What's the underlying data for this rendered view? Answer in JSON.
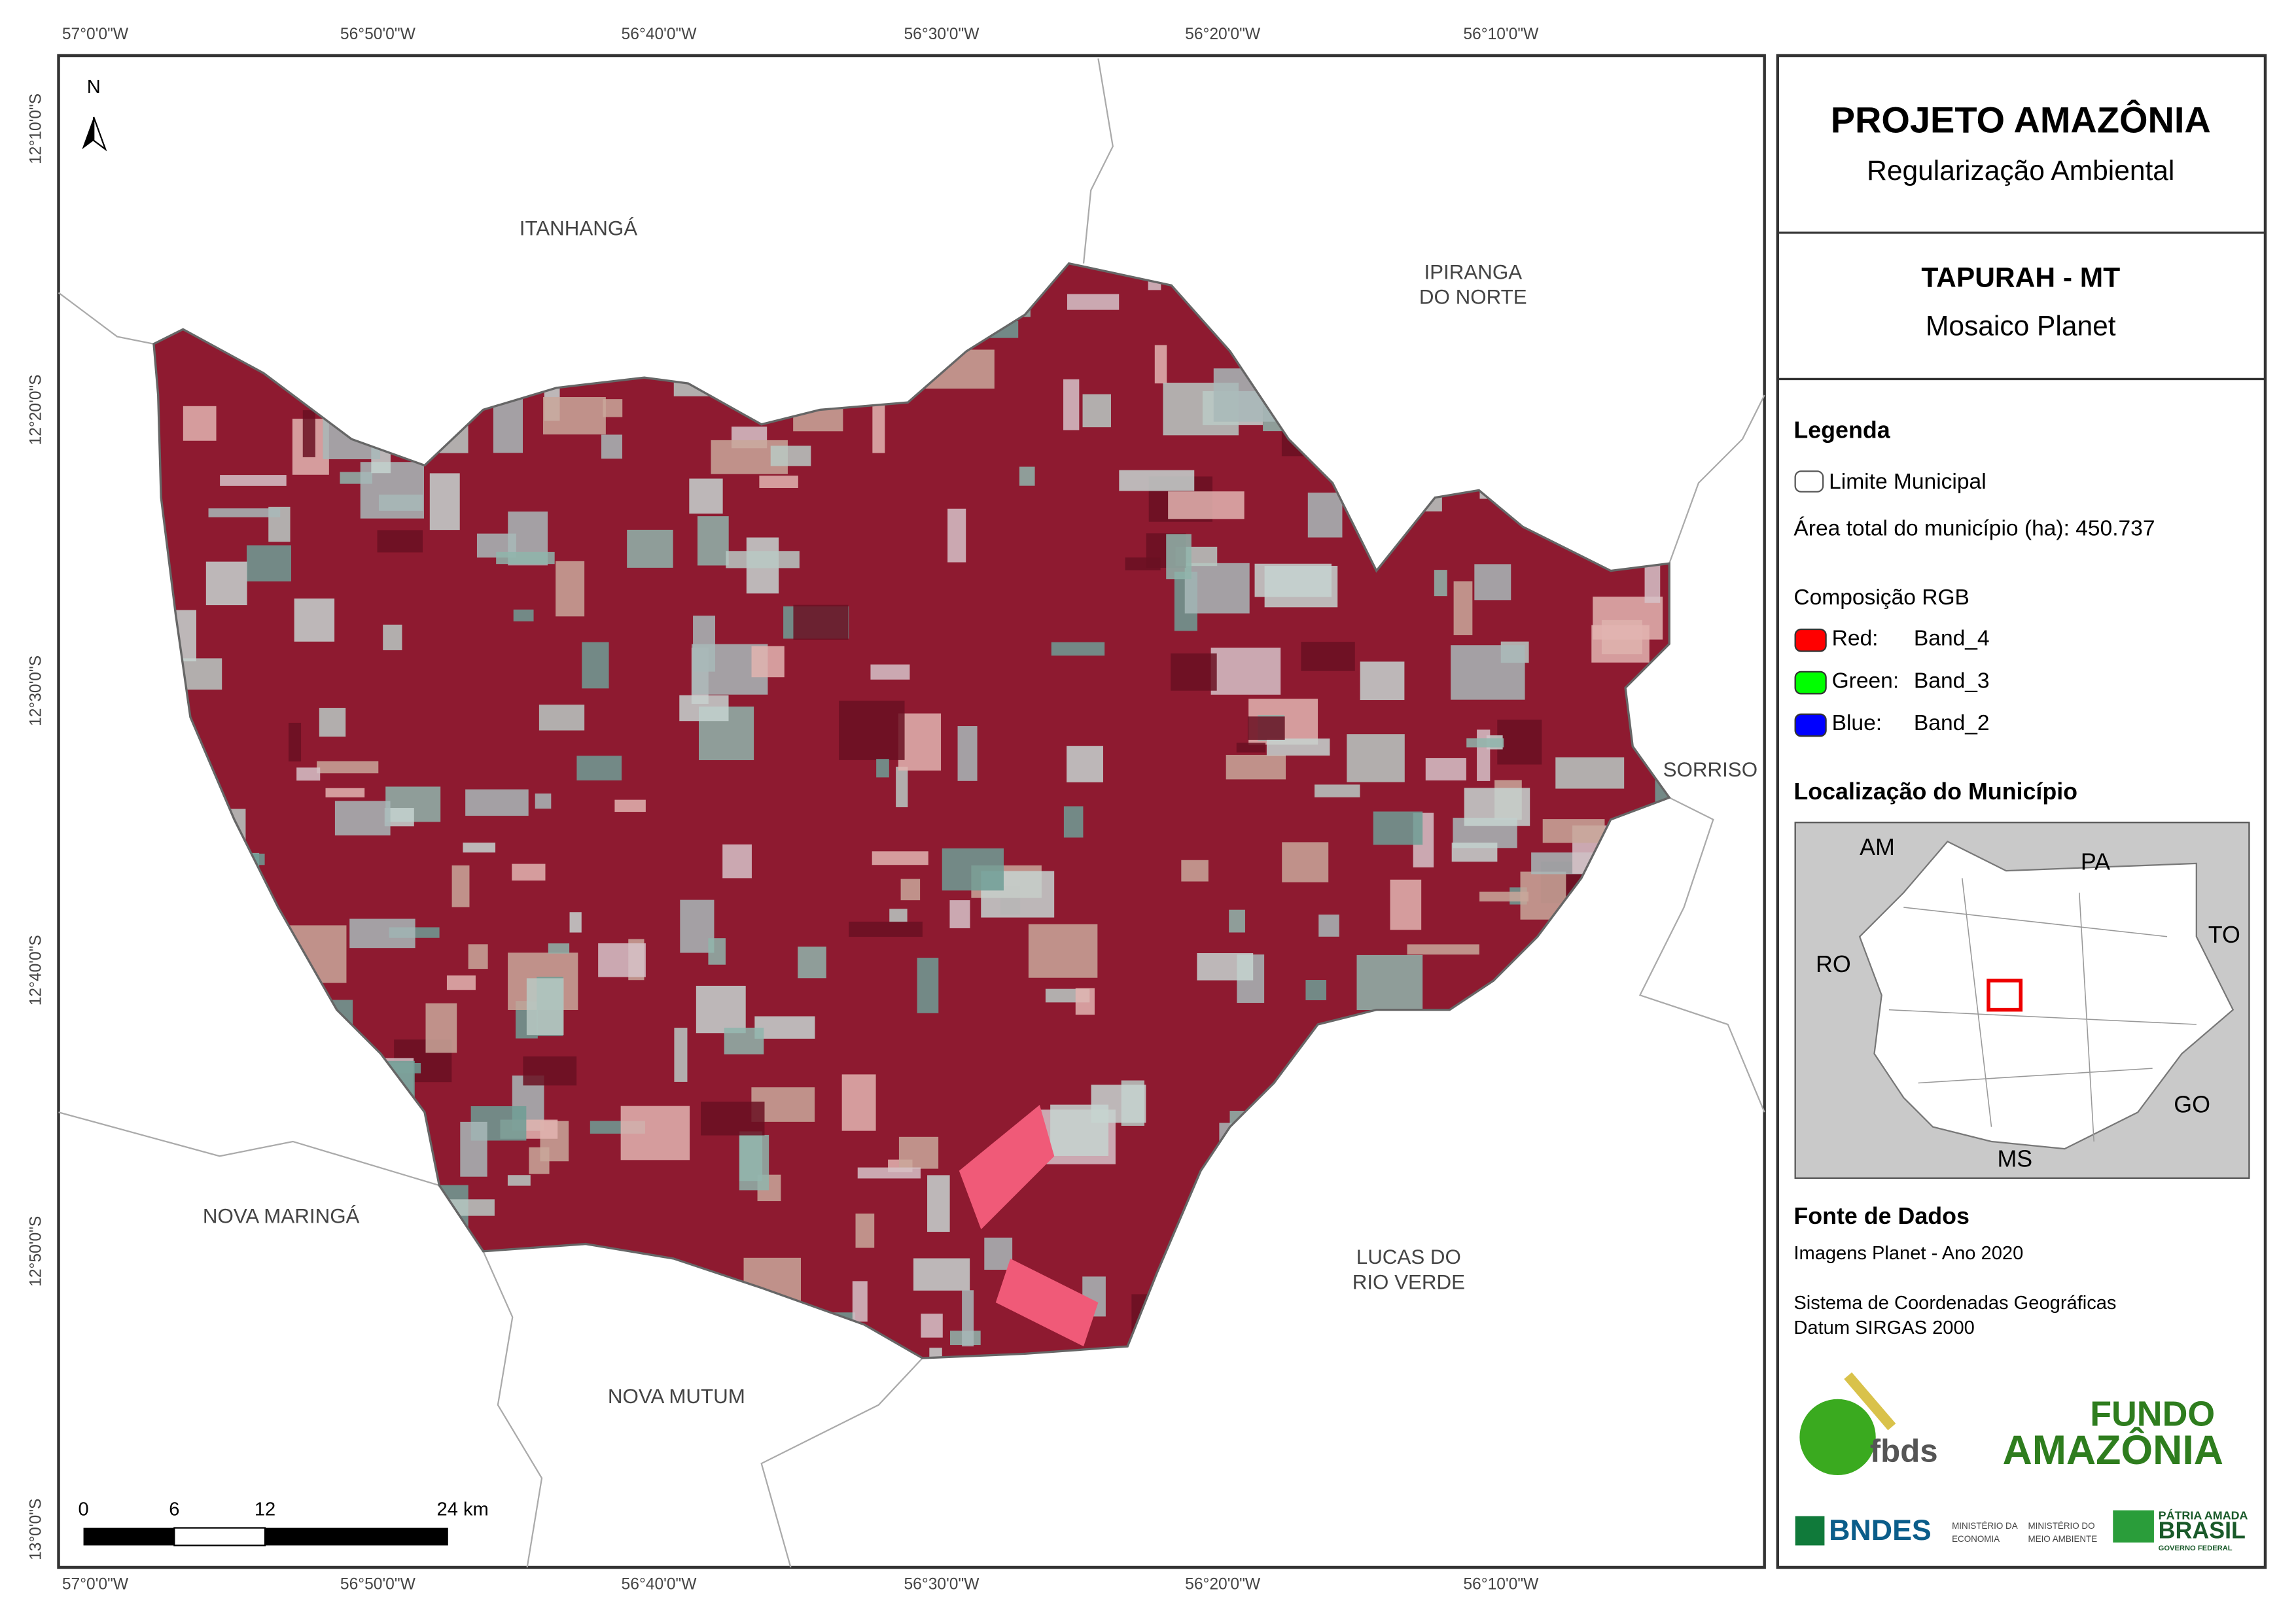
{
  "header": {
    "title": "PROJETO AMAZÔNIA",
    "subtitle": "Regularização Ambiental",
    "municipality": "TAPURAH - MT",
    "image": "Mosaico Planet"
  },
  "map": {
    "lon_labels": [
      "57°0'0\"W",
      "56°50'0\"W",
      "56°40'0\"W",
      "56°30'0\"W",
      "56°20'0\"W",
      "56°10'0\"W"
    ],
    "lat_labels": [
      "12°10'0\"S",
      "12°20'0\"S",
      "12°30'0\"S",
      "12°40'0\"S",
      "12°50'0\"S",
      "13°0'0\"S"
    ],
    "places": [
      [
        "ITANHANGÁ"
      ],
      [
        "IPIRANGA",
        "DO NORTE"
      ],
      [
        "SORRISO"
      ],
      [
        "NOVA MARINGÁ"
      ],
      [
        "LUCAS DO",
        "RIO VERDE"
      ],
      [
        "NOVA MUTUM"
      ]
    ],
    "north": "N",
    "scale_labels": [
      "0",
      "6",
      "12",
      "24 km"
    ]
  },
  "legend": {
    "title": "Legenda",
    "boundary": "Limite Municipal",
    "area": "Área total do município (ha): 450.737",
    "rgb_title": "Composição RGB",
    "rgb": [
      {
        "label": "Red:",
        "band": "Band_4",
        "color": "#ff0000"
      },
      {
        "label": "Green:",
        "band": "Band_3",
        "color": "#00ff00"
      },
      {
        "label": "Blue:",
        "band": "Band_2",
        "color": "#0000ff"
      }
    ]
  },
  "location": {
    "title": "Localização do Município",
    "states": [
      "AM",
      "PA",
      "RO",
      "TO",
      "GO",
      "MS"
    ]
  },
  "sources": {
    "title": "Fonte de Dados",
    "lines": [
      "Imagens Planet - Ano 2020",
      "Sistema de Coordenadas Geográficas",
      "Datum SIRGAS 2000"
    ]
  },
  "logos": {
    "fbds": "fbds",
    "fundo": [
      "FUNDO",
      "AMAZÔNIA"
    ],
    "bndes": "BNDES",
    "ministries": [
      "MINISTÉRIO DA",
      "ECONOMIA",
      "MINISTÉRIO DO",
      "MEIO AMBIENTE"
    ],
    "brasil": [
      "PÁTRIA AMADA",
      "BRASIL",
      "GOVERNO FEDERAL"
    ]
  }
}
